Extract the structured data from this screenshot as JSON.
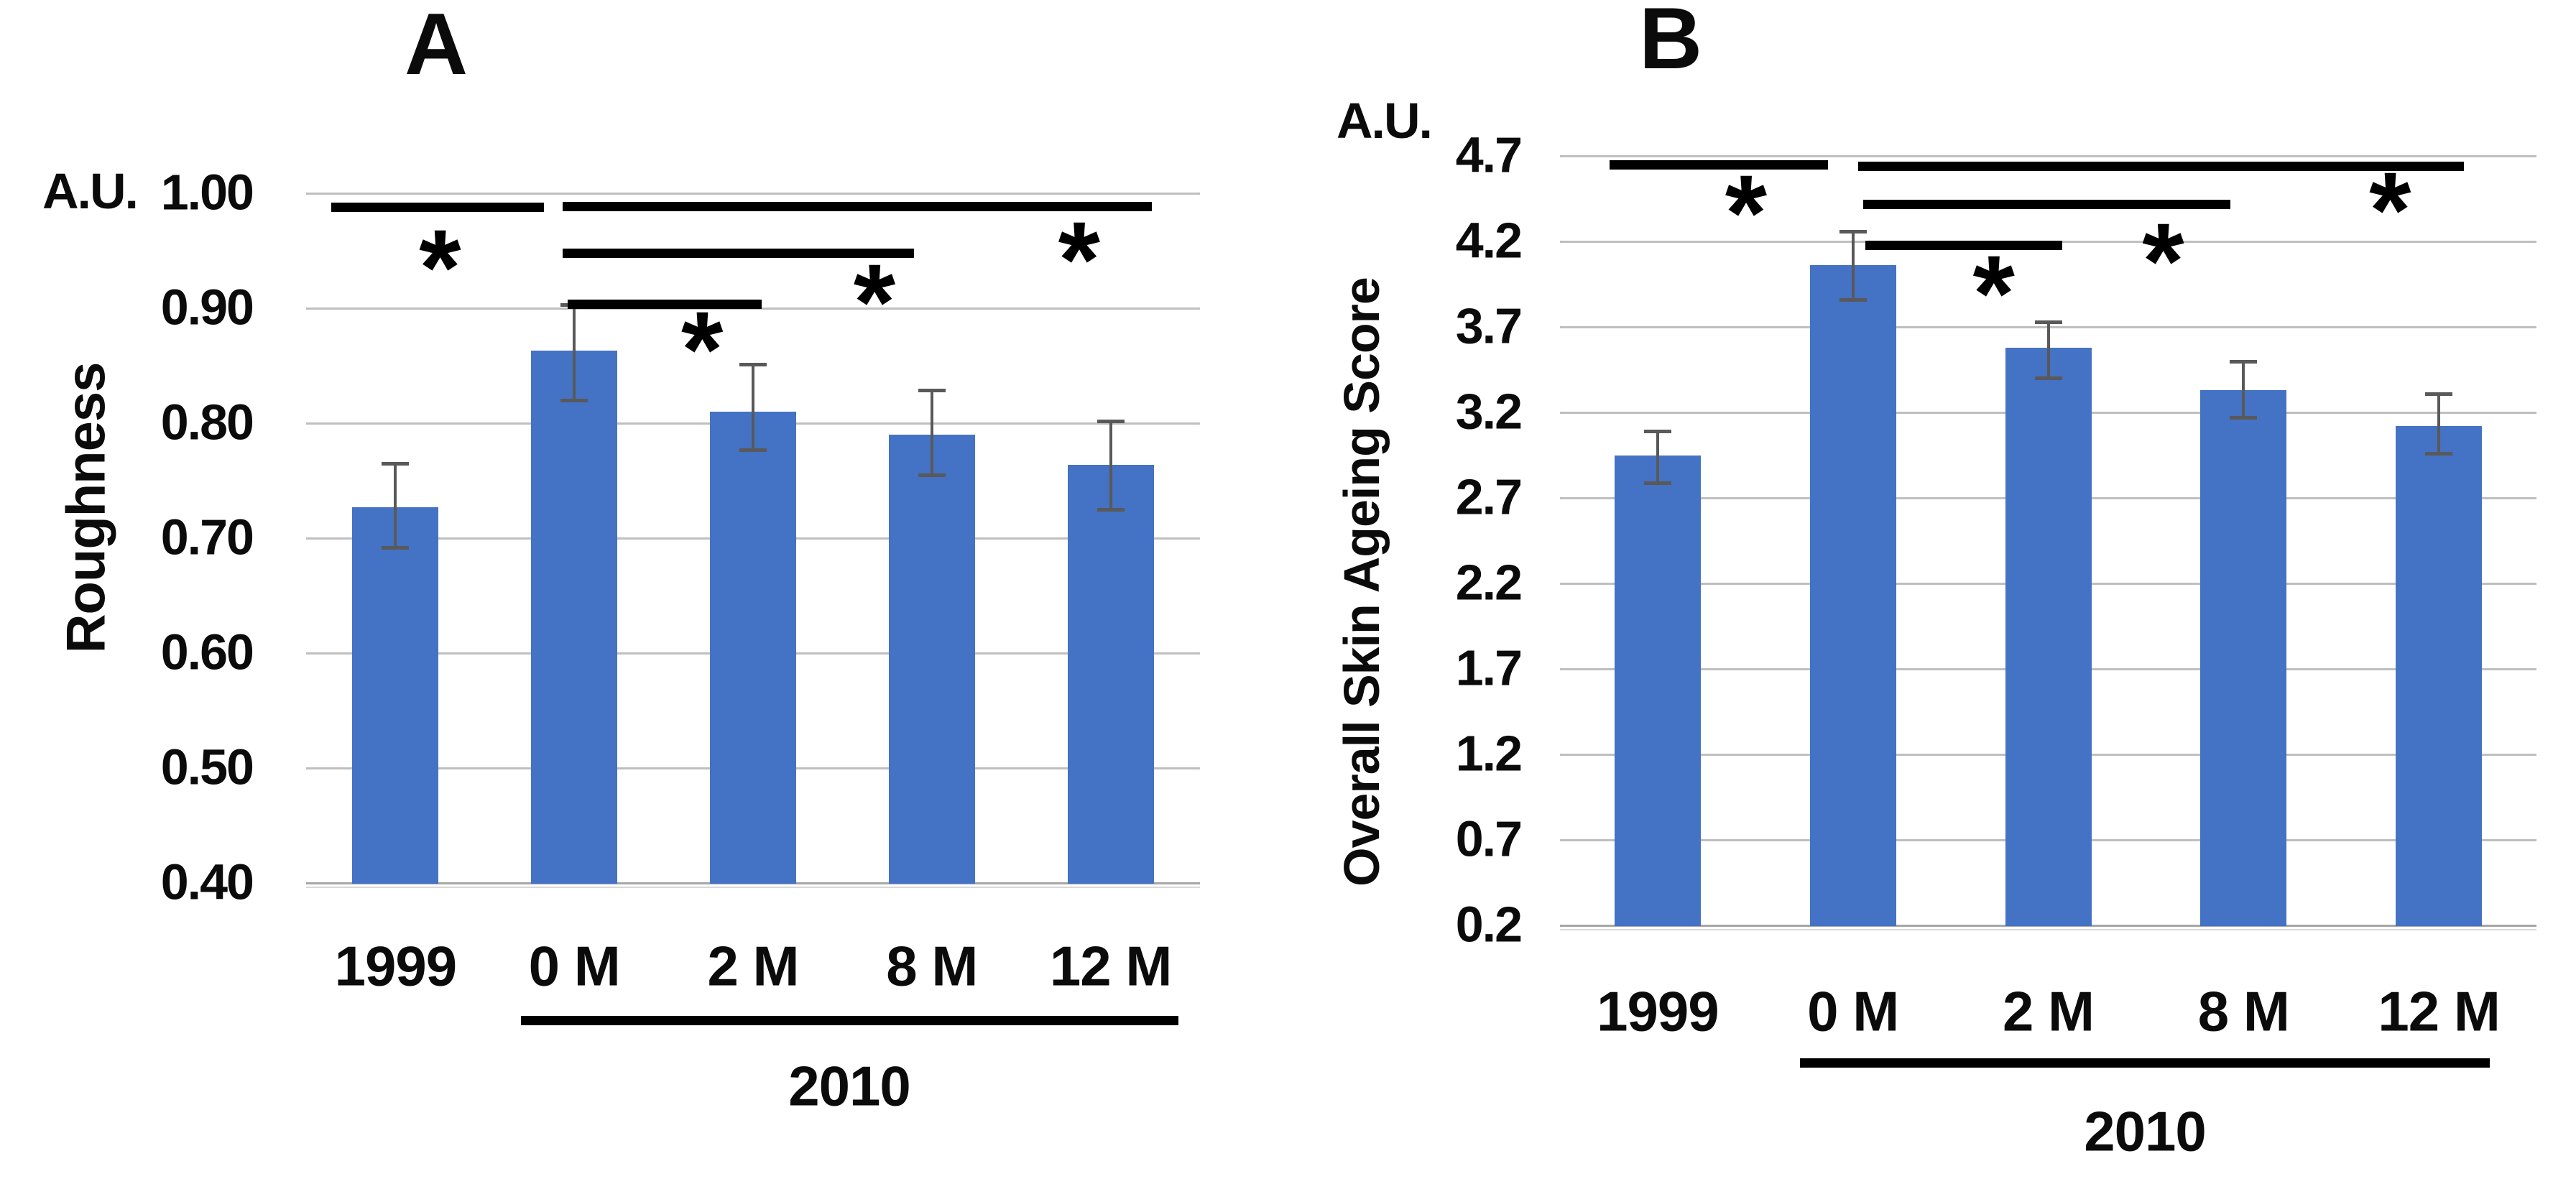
{
  "chart_data": [
    {
      "type": "bar",
      "panel_label": "A",
      "unit_label": "A.U.",
      "ylabel": "Roughness",
      "xlabel": "",
      "categories": [
        "1999",
        "0 M",
        "2 M",
        "8 M",
        "12 M"
      ],
      "values": [
        0.727,
        0.863,
        0.81,
        0.79,
        0.764
      ],
      "error_up": [
        0.038,
        0.04,
        0.041,
        0.039,
        0.038
      ],
      "error_down": [
        0.035,
        0.043,
        0.033,
        0.035,
        0.039
      ],
      "yticks": [
        1.0,
        0.9,
        0.8,
        0.7,
        0.6,
        0.5,
        0.4
      ],
      "ytick_labels": [
        "1.00",
        "0.90",
        "0.80",
        "0.70",
        "0.60",
        "0.50",
        "0.40"
      ],
      "ylim": [
        0.4,
        1.0
      ],
      "grid": true,
      "legend": null,
      "bar_color": "#4472C4",
      "error_color": "#595959",
      "gridline_color": "#BFBFBF",
      "annotation_color": "#000000",
      "group_label": "2010",
      "group_from": "0 M",
      "group_to": "12 M",
      "significance": [
        {
          "from": "1999",
          "to": "0 M",
          "line_y": 0.988,
          "dx1": -89,
          "dx2": -42,
          "star": "*",
          "star_y": 0.945,
          "star_dx": -187
        },
        {
          "from": "0 M",
          "to": "12 M",
          "line_y": 0.989,
          "dx1": -16,
          "dx2": 57,
          "star": "*",
          "star_y": 0.952,
          "star_dx": -44
        },
        {
          "from": "0 M",
          "to": "8 M",
          "line_y": 0.948,
          "dx1": -16,
          "dx2": -25,
          "star": "*",
          "star_y": 0.915,
          "star_dx": -80
        },
        {
          "from": "0 M",
          "to": "2 M",
          "line_y": 0.904,
          "dx1": -9,
          "dx2": 12,
          "star": "*",
          "star_y": 0.874,
          "star_dx": -71
        }
      ]
    },
    {
      "type": "bar",
      "panel_label": "B",
      "unit_label": "A.U.",
      "ylabel": "Overall Skin Ageing Score",
      "xlabel": "",
      "categories": [
        "1999",
        "0 M",
        "2 M",
        "8 M",
        "12 M"
      ],
      "values": [
        2.95,
        4.06,
        3.58,
        3.33,
        3.12
      ],
      "error_up": [
        0.14,
        0.2,
        0.15,
        0.17,
        0.19
      ],
      "error_down": [
        0.16,
        0.2,
        0.18,
        0.16,
        0.16
      ],
      "yticks": [
        4.7,
        4.2,
        3.7,
        3.2,
        2.7,
        2.2,
        1.7,
        1.2,
        0.7,
        0.2
      ],
      "ytick_labels": [
        "4.7",
        "4.2",
        "3.7",
        "3.2",
        "2.7",
        "2.2",
        "1.7",
        "1.2",
        "0.7",
        "0.2"
      ],
      "ylim": [
        0.2,
        4.7
      ],
      "grid": true,
      "legend": null,
      "bar_color": "#4472C4",
      "error_color": "#595959",
      "gridline_color": "#BFBFBF",
      "annotation_color": "#000000",
      "group_label": "2010",
      "group_from": "0 M",
      "group_to": "12 M",
      "significance": [
        {
          "from": "1999",
          "to": "0 M",
          "line_y": 4.65,
          "dx1": -67,
          "dx2": -35,
          "star": "*",
          "star_y": 4.43,
          "star_dx": -149
        },
        {
          "from": "0 M",
          "to": "12 M",
          "line_y": 4.64,
          "dx1": 7,
          "dx2": 35,
          "star": "*",
          "star_y": 4.45,
          "star_dx": -68
        },
        {
          "from": "0 M",
          "to": "8 M",
          "line_y": 4.42,
          "dx1": 14,
          "dx2": -18,
          "star": "*",
          "star_y": 4.15,
          "star_dx": -112
        },
        {
          "from": "0 M",
          "to": "2 M",
          "line_y": 4.18,
          "dx1": 17,
          "dx2": 20,
          "star": "*",
          "star_y": 3.96,
          "star_dx": -76
        }
      ]
    }
  ]
}
